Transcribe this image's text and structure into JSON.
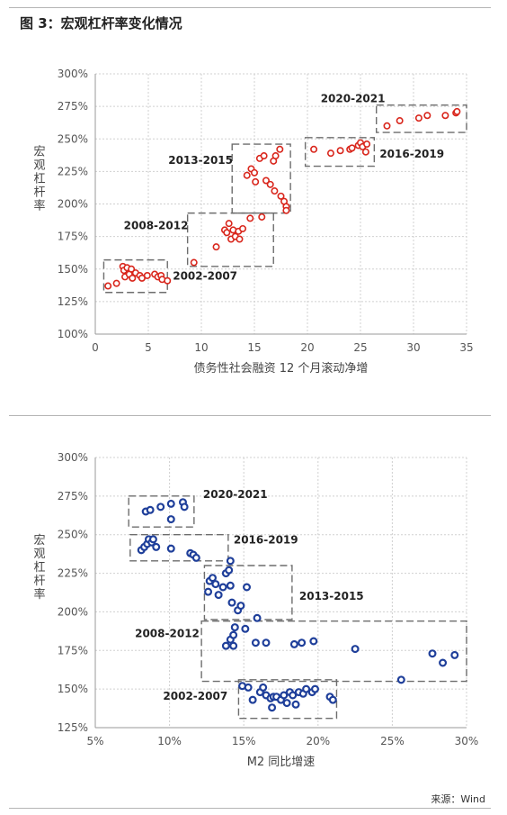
{
  "figure": {
    "title": "图 3：宏观杠杆率变化情况",
    "source": "来源：Wind"
  },
  "colors": {
    "red_series": "#d9261c",
    "blue_series": "#1f3f9a",
    "grid": "#d0d0d0",
    "box": "#6d6d6d"
  },
  "chart_data": [
    {
      "type": "scatter",
      "title": "",
      "xlabel": "债务性社会融资 12 个月滚动净增",
      "ylabel": "宏观杠杆率",
      "xlim": [
        0,
        35
      ],
      "ylim": [
        1.0,
        3.0
      ],
      "x_ticks": [
        0,
        5,
        10,
        15,
        20,
        25,
        30,
        35
      ],
      "x_tick_labels": [
        "0",
        "5",
        "10",
        "15",
        "20",
        "25",
        "30",
        "35"
      ],
      "y_ticks": [
        1.0,
        1.25,
        1.5,
        1.75,
        2.0,
        2.25,
        2.5,
        2.75,
        3.0
      ],
      "y_tick_labels": [
        "100%",
        "125%",
        "150%",
        "175%",
        "200%",
        "225%",
        "250%",
        "275%",
        "300%"
      ],
      "grid": true,
      "series_color": "#d9261c",
      "points": [
        [
          1.2,
          1.37
        ],
        [
          2.0,
          1.39
        ],
        [
          2.6,
          1.52
        ],
        [
          2.7,
          1.49
        ],
        [
          2.8,
          1.44
        ],
        [
          3.0,
          1.51
        ],
        [
          3.2,
          1.46
        ],
        [
          3.4,
          1.5
        ],
        [
          3.5,
          1.43
        ],
        [
          3.8,
          1.47
        ],
        [
          4.2,
          1.45
        ],
        [
          4.4,
          1.43
        ],
        [
          4.9,
          1.45
        ],
        [
          5.6,
          1.46
        ],
        [
          5.9,
          1.44
        ],
        [
          6.2,
          1.45
        ],
        [
          6.3,
          1.42
        ],
        [
          6.8,
          1.41
        ],
        [
          9.3,
          1.55
        ],
        [
          11.4,
          1.67
        ],
        [
          12.2,
          1.8
        ],
        [
          12.4,
          1.78
        ],
        [
          12.6,
          1.85
        ],
        [
          12.8,
          1.73
        ],
        [
          13.0,
          1.8
        ],
        [
          13.2,
          1.75
        ],
        [
          13.5,
          1.79
        ],
        [
          13.6,
          1.73
        ],
        [
          13.9,
          1.81
        ],
        [
          14.6,
          1.89
        ],
        [
          15.7,
          1.9
        ],
        [
          14.3,
          2.22
        ],
        [
          14.7,
          2.27
        ],
        [
          15.0,
          2.24
        ],
        [
          15.1,
          2.17
        ],
        [
          15.5,
          2.35
        ],
        [
          15.9,
          2.37
        ],
        [
          16.1,
          2.18
        ],
        [
          16.5,
          2.15
        ],
        [
          16.8,
          2.33
        ],
        [
          16.9,
          2.1
        ],
        [
          17.0,
          2.37
        ],
        [
          17.4,
          2.42
        ],
        [
          17.5,
          2.06
        ],
        [
          17.8,
          2.02
        ],
        [
          18.0,
          1.98
        ],
        [
          18.0,
          1.95
        ],
        [
          20.6,
          2.42
        ],
        [
          22.2,
          2.39
        ],
        [
          23.1,
          2.41
        ],
        [
          24.0,
          2.42
        ],
        [
          24.2,
          2.43
        ],
        [
          24.8,
          2.45
        ],
        [
          25.0,
          2.47
        ],
        [
          25.2,
          2.44
        ],
        [
          25.5,
          2.4
        ],
        [
          25.6,
          2.46
        ],
        [
          27.5,
          2.6
        ],
        [
          28.7,
          2.64
        ],
        [
          30.5,
          2.66
        ],
        [
          31.3,
          2.68
        ],
        [
          33.0,
          2.68
        ],
        [
          34.0,
          2.7
        ],
        [
          34.1,
          2.71
        ]
      ],
      "annotations": [
        {
          "label": "2002-2007",
          "box": [
            0.8,
            6.8,
            1.32,
            1.57
          ]
        },
        {
          "label": "2008-2012",
          "box": [
            8.7,
            16.8,
            1.52,
            1.93
          ]
        },
        {
          "label": "2013-2015",
          "box": [
            12.9,
            18.4,
            1.93,
            2.46
          ]
        },
        {
          "label": "2016-2019",
          "box": [
            19.8,
            26.3,
            2.29,
            2.51
          ]
        },
        {
          "label": "2020-2021",
          "box": [
            26.5,
            35.0,
            2.55,
            2.76
          ]
        }
      ]
    },
    {
      "type": "scatter",
      "title": "",
      "xlabel": "M2 同比增速",
      "ylabel": "宏观杠杆率",
      "xlim": [
        0.05,
        0.3
      ],
      "ylim": [
        1.25,
        3.0
      ],
      "x_ticks": [
        0.05,
        0.1,
        0.15,
        0.2,
        0.25,
        0.3
      ],
      "x_tick_labels": [
        "5%",
        "10%",
        "15%",
        "20%",
        "25%",
        "30%"
      ],
      "y_ticks": [
        1.25,
        1.5,
        1.75,
        2.0,
        2.25,
        2.5,
        2.75,
        3.0
      ],
      "y_tick_labels": [
        "125%",
        "150%",
        "175%",
        "200%",
        "225%",
        "250%",
        "275%",
        "300%"
      ],
      "grid": true,
      "series_color": "#1f3f9a",
      "points": [
        [
          0.084,
          2.65
        ],
        [
          0.087,
          2.66
        ],
        [
          0.094,
          2.68
        ],
        [
          0.101,
          2.7
        ],
        [
          0.101,
          2.6
        ],
        [
          0.109,
          2.71
        ],
        [
          0.11,
          2.68
        ],
        [
          0.081,
          2.4
        ],
        [
          0.083,
          2.42
        ],
        [
          0.085,
          2.44
        ],
        [
          0.086,
          2.47
        ],
        [
          0.088,
          2.45
        ],
        [
          0.089,
          2.47
        ],
        [
          0.091,
          2.42
        ],
        [
          0.101,
          2.41
        ],
        [
          0.114,
          2.38
        ],
        [
          0.116,
          2.37
        ],
        [
          0.118,
          2.35
        ],
        [
          0.126,
          2.13
        ],
        [
          0.127,
          2.2
        ],
        [
          0.129,
          2.22
        ],
        [
          0.131,
          2.18
        ],
        [
          0.133,
          2.11
        ],
        [
          0.136,
          2.16
        ],
        [
          0.138,
          2.25
        ],
        [
          0.14,
          2.27
        ],
        [
          0.141,
          2.33
        ],
        [
          0.141,
          2.17
        ],
        [
          0.142,
          2.06
        ],
        [
          0.146,
          2.01
        ],
        [
          0.148,
          2.04
        ],
        [
          0.152,
          2.16
        ],
        [
          0.159,
          1.96
        ],
        [
          0.138,
          1.78
        ],
        [
          0.141,
          1.82
        ],
        [
          0.143,
          1.85
        ],
        [
          0.143,
          1.78
        ],
        [
          0.144,
          1.9
        ],
        [
          0.151,
          1.89
        ],
        [
          0.158,
          1.8
        ],
        [
          0.165,
          1.8
        ],
        [
          0.184,
          1.79
        ],
        [
          0.189,
          1.8
        ],
        [
          0.197,
          1.81
        ],
        [
          0.225,
          1.76
        ],
        [
          0.256,
          1.56
        ],
        [
          0.277,
          1.73
        ],
        [
          0.284,
          1.67
        ],
        [
          0.292,
          1.72
        ],
        [
          0.149,
          1.52
        ],
        [
          0.153,
          1.51
        ],
        [
          0.156,
          1.43
        ],
        [
          0.161,
          1.48
        ],
        [
          0.163,
          1.51
        ],
        [
          0.165,
          1.46
        ],
        [
          0.168,
          1.44
        ],
        [
          0.169,
          1.38
        ],
        [
          0.17,
          1.45
        ],
        [
          0.172,
          1.45
        ],
        [
          0.175,
          1.43
        ],
        [
          0.177,
          1.46
        ],
        [
          0.179,
          1.41
        ],
        [
          0.181,
          1.48
        ],
        [
          0.183,
          1.46
        ],
        [
          0.185,
          1.4
        ],
        [
          0.187,
          1.48
        ],
        [
          0.19,
          1.47
        ],
        [
          0.192,
          1.5
        ],
        [
          0.196,
          1.48
        ],
        [
          0.198,
          1.5
        ],
        [
          0.208,
          1.45
        ],
        [
          0.21,
          1.43
        ]
      ],
      "annotations": [
        {
          "label": "2020-2021",
          "box": [
            0.0725,
            0.1165,
            2.55,
            2.75
          ]
        },
        {
          "label": "2016-2019",
          "box": [
            0.0735,
            0.1395,
            2.33,
            2.5
          ]
        },
        {
          "label": "2013-2015",
          "box": [
            0.1235,
            0.1825,
            1.95,
            2.3
          ]
        },
        {
          "label": "2008-2012",
          "box": [
            0.1215,
            0.3,
            1.55,
            1.94
          ]
        },
        {
          "label": "2002-2007",
          "box": [
            0.1465,
            0.2125,
            1.31,
            1.56
          ]
        }
      ]
    }
  ]
}
